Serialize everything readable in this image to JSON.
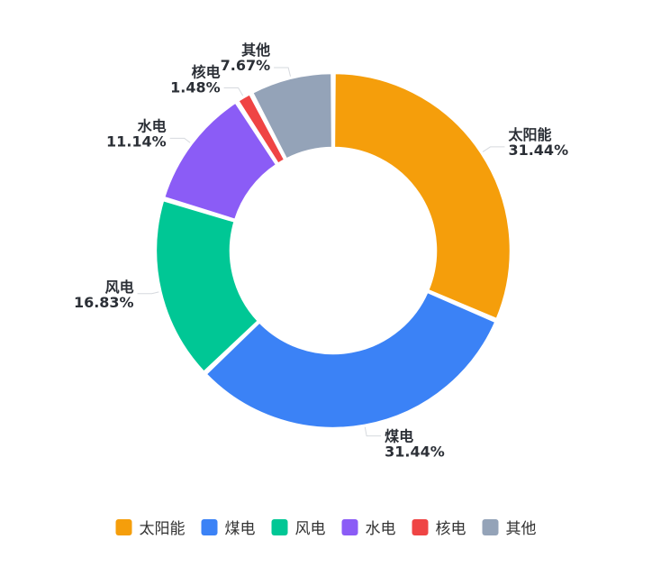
{
  "chart_data": {
    "type": "pie",
    "variant": "donut",
    "title": "",
    "legend_position": "bottom",
    "slices": [
      {
        "name": "太阳能",
        "value": 31.44,
        "label": "31.44%",
        "color": "#f59e0b"
      },
      {
        "name": "煤电",
        "value": 31.44,
        "label": "31.44%",
        "color": "#3b82f6"
      },
      {
        "name": "风电",
        "value": 16.83,
        "label": "16.83%",
        "color": "#00c795"
      },
      {
        "name": "水电",
        "value": 11.14,
        "label": "11.14%",
        "color": "#8b5cf6"
      },
      {
        "name": "核电",
        "value": 1.48,
        "label": "1.48%",
        "color": "#ef4444"
      },
      {
        "name": "其他",
        "value": 7.67,
        "label": "7.67%",
        "color": "#94a3b8"
      }
    ]
  }
}
